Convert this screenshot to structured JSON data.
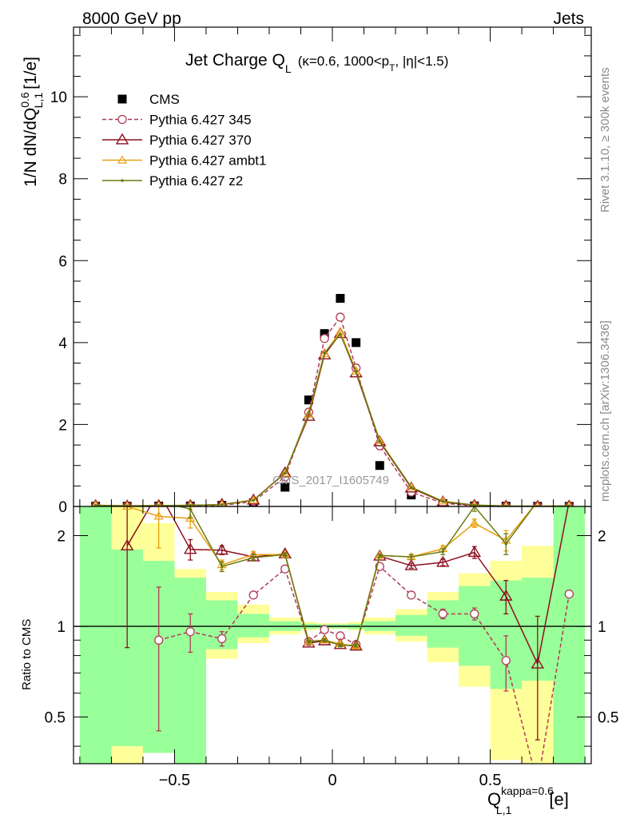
{
  "header": {
    "left": "8000 GeV pp",
    "right": "Jets"
  },
  "side_labels": {
    "rivet": "Rivet 3.1.10, ≥ 300k events",
    "mcplots": "mcplots.cern.ch [arXiv:1306.3436]"
  },
  "watermark": "CMS_2017_I1605749",
  "chart_data": [
    {
      "type": "scatter",
      "title": "Jet Charge Q_L (κ=0.6, 1000<p_T, |η|<1.5)",
      "title_main": "Jet Charge Q",
      "title_sub": "L",
      "title_rest": "(κ=0.6, 1000<p",
      "title_sub2": "T",
      "title_end": ", |η|<1.5)",
      "ylabel": "1/N dN/dQ_{L,1}^{0.6} [1/e]",
      "ylabel_main": "1/N dN/dQ",
      "ylabel_sup": "0.6",
      "ylabel_sub": "L,1",
      "ylabel_unit": "[1/e]",
      "xlim": [
        -0.82,
        0.82
      ],
      "ylim": [
        0,
        11.7
      ],
      "yticks": [
        0,
        2,
        4,
        6,
        8,
        10
      ],
      "ytick_labels": [
        "0",
        "2",
        "4",
        "6",
        "8",
        "10"
      ],
      "x": [
        -0.75,
        -0.65,
        -0.55,
        -0.45,
        -0.35,
        -0.25,
        -0.15,
        -0.075,
        -0.025,
        0.025,
        0.075,
        0.15,
        0.25,
        0.35,
        0.45,
        0.55,
        0.65,
        0.75
      ],
      "series": [
        {
          "name": "CMS",
          "color": "#000000",
          "marker": "square",
          "line": "none",
          "values": [
            0.005,
            0.006,
            0.009,
            0.012,
            0.028,
            0.09,
            0.47,
            2.6,
            4.22,
            5.08,
            4.0,
            1.0,
            0.28,
            0.07,
            0.014,
            0.006,
            0.004,
            0.003
          ]
        },
        {
          "name": "Pythia 6.427 345",
          "color": "#b03a55",
          "marker": "circle-open",
          "line": "dashed",
          "values": [
            0.006,
            0.007,
            0.008,
            0.011,
            0.026,
            0.12,
            0.72,
            2.3,
            4.1,
            4.62,
            3.38,
            1.48,
            0.35,
            0.08,
            0.016,
            0.005,
            0.003,
            0.004
          ]
        },
        {
          "name": "Pythia 6.427 370",
          "color": "#8b0f1e",
          "marker": "triangle-open",
          "line": "solid",
          "values": [
            0.02,
            0.011,
            0.02,
            0.021,
            0.05,
            0.155,
            0.82,
            2.2,
            3.7,
            4.22,
            3.26,
            1.58,
            0.45,
            0.11,
            0.025,
            0.008,
            0.003,
            0.01
          ]
        },
        {
          "name": "Pythia 6.427 ambt1",
          "color": "#e8a012",
          "marker": "triangle-open-small",
          "line": "solid",
          "values": [
            0.03,
            0.014,
            0.021,
            0.027,
            0.045,
            0.155,
            0.81,
            2.25,
            3.73,
            4.27,
            3.3,
            1.6,
            0.47,
            0.13,
            0.031,
            0.011,
            0.007,
            0.015
          ]
        },
        {
          "name": "Pythia 6.427 z2",
          "color": "#6b7b10",
          "marker": "dot",
          "line": "solid",
          "values": [
            0.03,
            0.016,
            0.023,
            0.029,
            0.044,
            0.15,
            0.81,
            2.27,
            3.75,
            4.2,
            3.3,
            1.6,
            0.47,
            0.12,
            0.035,
            0.011,
            0.007,
            0.015
          ]
        }
      ]
    },
    {
      "type": "line",
      "ylabel": "Ratio to CMS",
      "xlabel": "Q_{L,1}^{kappa=0.6} [e]",
      "xlabel_main": "Q",
      "xlabel_sup": "kappa=0.6",
      "xlabel_sub": "L,1",
      "xlabel_unit": "[e]",
      "xlim": [
        -0.82,
        0.82
      ],
      "ylim": [
        0.35,
        2.5
      ],
      "xticks": [
        -0.5,
        0,
        0.5
      ],
      "xtick_labels": [
        "−0.5",
        "0",
        "0.5"
      ],
      "yticks": [
        0.5,
        1,
        2
      ],
      "ytick_labels": [
        "0.5",
        "1",
        "2"
      ],
      "reference": 1,
      "bands": [
        {
          "x0": -0.8,
          "x1": -0.7,
          "yellow": [
            0.2,
            3.0
          ],
          "green": [
            0.3,
            2.5
          ]
        },
        {
          "x0": -0.7,
          "x1": -0.6,
          "yellow": [
            0.3,
            2.5
          ],
          "green": [
            0.4,
            1.8
          ]
        },
        {
          "x0": -0.6,
          "x1": -0.5,
          "yellow": [
            0.38,
            2.2
          ],
          "green": [
            0.38,
            1.65
          ]
        },
        {
          "x0": -0.5,
          "x1": -0.4,
          "yellow": [
            0.65,
            1.55
          ],
          "green": [
            0.35,
            1.45
          ]
        },
        {
          "x0": -0.4,
          "x1": -0.3,
          "yellow": [
            0.78,
            1.3
          ],
          "green": [
            0.84,
            1.22
          ]
        },
        {
          "x0": -0.3,
          "x1": -0.2,
          "yellow": [
            0.88,
            1.18
          ],
          "green": [
            0.92,
            1.1
          ]
        },
        {
          "x0": -0.2,
          "x1": -0.1,
          "yellow": [
            0.94,
            1.07
          ],
          "green": [
            0.965,
            1.04
          ]
        },
        {
          "x0": -0.1,
          "x1": -0.05,
          "yellow": [
            0.97,
            1.035
          ],
          "green": [
            0.98,
            1.02
          ]
        },
        {
          "x0": -0.05,
          "x1": 0,
          "yellow": [
            0.98,
            1.025
          ],
          "green": [
            0.985,
            1.015
          ]
        },
        {
          "x0": 0,
          "x1": 0.05,
          "yellow": [
            0.98,
            1.025
          ],
          "green": [
            0.985,
            1.015
          ]
        },
        {
          "x0": 0.05,
          "x1": 0.1,
          "yellow": [
            0.97,
            1.035
          ],
          "green": [
            0.98,
            1.02
          ]
        },
        {
          "x0": 0.1,
          "x1": 0.2,
          "yellow": [
            0.94,
            1.07
          ],
          "green": [
            0.965,
            1.04
          ]
        },
        {
          "x0": 0.2,
          "x1": 0.3,
          "yellow": [
            0.89,
            1.14
          ],
          "green": [
            0.93,
            1.09
          ]
        },
        {
          "x0": 0.3,
          "x1": 0.4,
          "yellow": [
            0.76,
            1.3
          ],
          "green": [
            0.85,
            1.22
          ]
        },
        {
          "x0": 0.4,
          "x1": 0.5,
          "yellow": [
            0.63,
            1.5
          ],
          "green": [
            0.74,
            1.36
          ]
        },
        {
          "x0": 0.5,
          "x1": 0.6,
          "yellow": [
            0.36,
            1.65
          ],
          "green": [
            0.62,
            1.42
          ]
        },
        {
          "x0": 0.6,
          "x1": 0.7,
          "yellow": [
            0.3,
            1.85
          ],
          "green": [
            0.66,
            1.45
          ]
        },
        {
          "x0": 0.7,
          "x1": 0.8,
          "yellow": [
            0.2,
            3.0
          ],
          "green": [
            0.3,
            2.5
          ]
        }
      ],
      "x": [
        -0.75,
        -0.65,
        -0.55,
        -0.45,
        -0.35,
        -0.25,
        -0.15,
        -0.075,
        -0.025,
        0.025,
        0.075,
        0.15,
        0.25,
        0.35,
        0.45,
        0.55,
        0.65,
        0.75
      ],
      "series": [
        {
          "name": "Pythia 6.427 345",
          "color": "#b03a55",
          "marker": "circle-open",
          "line": "dashed",
          "values": [
            null,
            null,
            0.9,
            0.96,
            0.91,
            1.27,
            1.55,
            0.89,
            0.975,
            0.93,
            0.87,
            1.58,
            1.27,
            1.1,
            1.1,
            0.77,
            0.3,
            1.28
          ],
          "errors": [
            null,
            null,
            0.45,
            0.14,
            0.05,
            0.03,
            0.02,
            0.01,
            0.01,
            0.01,
            0.01,
            0.02,
            0.03,
            0.04,
            0.05,
            0.16,
            null,
            null
          ]
        },
        {
          "name": "Pythia 6.427 370",
          "color": "#8b0f1e",
          "marker": "triangle-open",
          "line": "solid",
          "values": [
            null,
            1.85,
            2.8,
            1.8,
            1.79,
            1.7,
            1.74,
            0.88,
            0.895,
            0.87,
            0.86,
            1.71,
            1.59,
            1.63,
            1.76,
            1.26,
            0.75,
            2.6
          ],
          "errors": [
            null,
            1.0,
            null,
            0.14,
            0.06,
            0.04,
            0.02,
            0.01,
            0.01,
            0.01,
            0.01,
            0.02,
            0.03,
            0.04,
            0.08,
            0.16,
            0.33,
            null
          ]
        },
        {
          "name": "Pythia 6.427 ambt1",
          "color": "#e8a012",
          "marker": "triangle-open-small",
          "line": "solid",
          "values": [
            null,
            2.5,
            2.32,
            2.28,
            1.6,
            1.73,
            1.73,
            0.89,
            0.9,
            0.875,
            0.86,
            1.72,
            1.7,
            1.81,
            2.2,
            1.93,
            2.6,
            2.6
          ],
          "errors": [
            null,
            null,
            0.5,
            0.16,
            0.06,
            0.04,
            0.02,
            0.01,
            0.01,
            0.01,
            0.01,
            0.02,
            0.03,
            0.04,
            0.07,
            0.15,
            null,
            null
          ]
        },
        {
          "name": "Pythia 6.427 z2",
          "color": "#6b7b10",
          "marker": "dot",
          "line": "solid",
          "values": [
            null,
            2.6,
            2.6,
            2.45,
            1.58,
            1.69,
            1.73,
            0.89,
            0.9,
            0.865,
            0.865,
            1.72,
            1.7,
            1.77,
            2.5,
            1.88,
            2.6,
            2.6
          ],
          "errors": [
            null,
            null,
            null,
            0.16,
            0.06,
            0.04,
            0.02,
            0.01,
            0.01,
            0.01,
            0.01,
            0.02,
            0.03,
            0.04,
            0.09,
            0.15,
            null,
            null
          ]
        }
      ]
    }
  ]
}
